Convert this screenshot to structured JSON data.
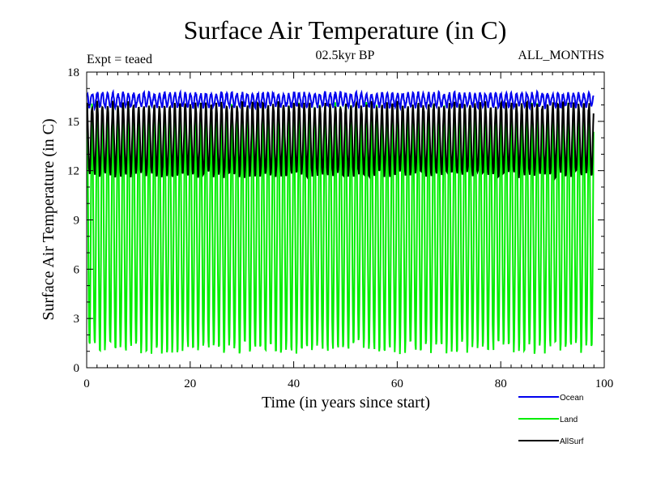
{
  "chart_data": {
    "type": "line",
    "title": "Surface Air Temperature (in C)",
    "subtitle_left": "Expt = teaed",
    "subtitle_center": "02.5kyr BP",
    "subtitle_right": "ALL_MONTHS",
    "xlabel": "Time (in years since start)",
    "ylabel": "Surface Air Temperature (in C)",
    "xlim": [
      0,
      100
    ],
    "ylim": [
      0,
      18
    ],
    "xticks": [
      0,
      20,
      40,
      60,
      80,
      100
    ],
    "yticks": [
      0,
      3,
      6,
      9,
      12,
      15,
      18
    ],
    "sampling": "monthly",
    "legend_position": "bottom-right",
    "series": [
      {
        "name": "Ocean",
        "color": "#0000ee",
        "start_year": 0.1,
        "end_year": 98.0,
        "mean": 16.3,
        "seasonal_min": 15.9,
        "seasonal_max": 16.7
      },
      {
        "name": "Land",
        "color": "#00ee00",
        "start_year": 0.1,
        "end_year": 98.0,
        "mean": 8.5,
        "seasonal_min": 1.2,
        "seasonal_max": 16.0
      },
      {
        "name": "AllSurf",
        "color": "#000000",
        "start_year": 0.1,
        "end_year": 98.0,
        "mean": 13.9,
        "seasonal_min": 11.8,
        "seasonal_max": 16.1
      }
    ]
  }
}
